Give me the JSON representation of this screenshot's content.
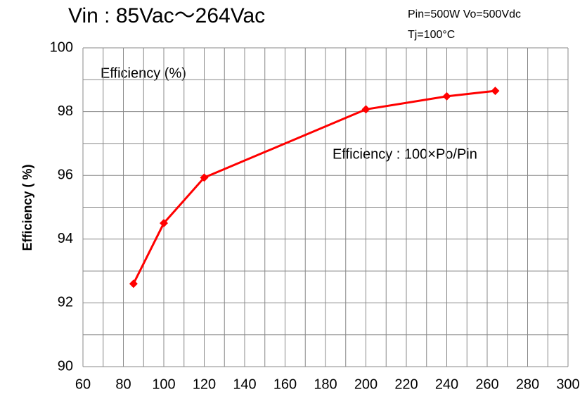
{
  "chart_data": {
    "type": "line",
    "title": "Vin : 85Vac～264Vac",
    "annotations": [
      "Pin=500W Vo=500Vdc",
      "Tj=100°C",
      "Efficiency : 100×Po/Pin"
    ],
    "ylabel": "Efficiency ( %)",
    "x": [
      85,
      100,
      120,
      200,
      240,
      264
    ],
    "series": [
      {
        "name": "Efficiency (%)",
        "color": "#ff0000",
        "values": [
          92.6,
          94.5,
          95.93,
          98.07,
          98.48,
          98.65
        ]
      }
    ],
    "xlim": [
      60,
      300
    ],
    "xticks": [
      60,
      80,
      100,
      120,
      140,
      160,
      180,
      200,
      220,
      240,
      260,
      280,
      300
    ],
    "ylim": [
      90,
      100
    ],
    "yticks": [
      90,
      92,
      94,
      96,
      98,
      100
    ],
    "xgrid": [
      60,
      70,
      80,
      90,
      100,
      110,
      120,
      130,
      140,
      150,
      160,
      170,
      180,
      190,
      200,
      210,
      220,
      230,
      240,
      250,
      260,
      270,
      280,
      290,
      300
    ],
    "ygrid": [
      90,
      91,
      92,
      93,
      94,
      95,
      96,
      97,
      98,
      99,
      100
    ],
    "grid": true
  }
}
